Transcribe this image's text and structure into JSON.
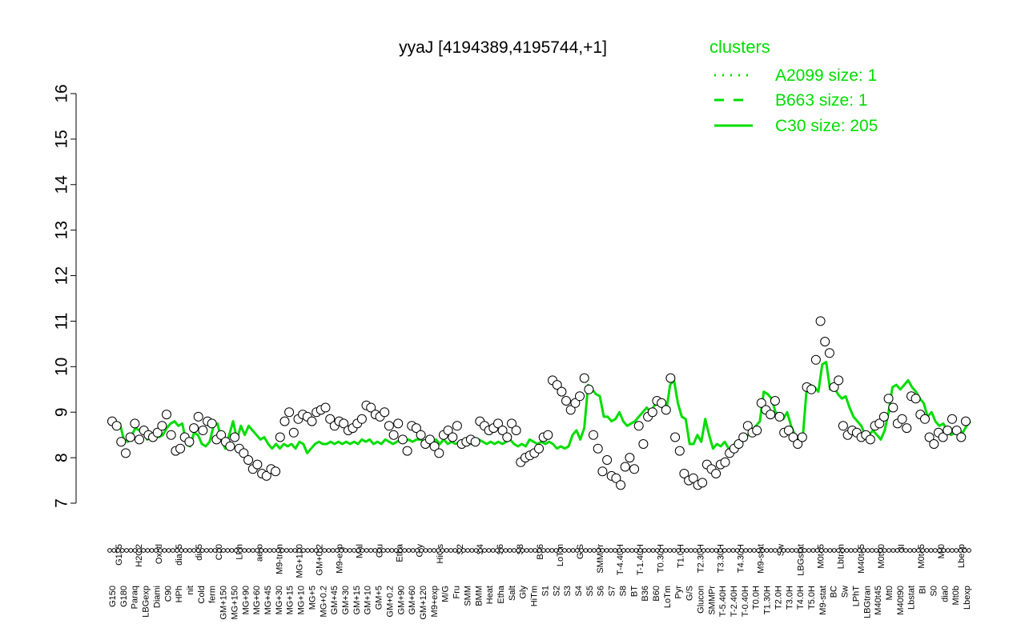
{
  "chart_data": {
    "type": "line",
    "title": "yyaJ [4194389,4195744,+1]",
    "xlabel": "",
    "ylabel": "",
    "ylim": [
      7,
      16
    ],
    "yticks": [
      7,
      8,
      9,
      10,
      11,
      12,
      13,
      14,
      15,
      16
    ],
    "legend": {
      "title": "clusters",
      "placement": "top-right",
      "entries": [
        {
          "label": "A2099 size: 1",
          "style": "dotted"
        },
        {
          "label": "B663 size: 1",
          "style": "dashed"
        },
        {
          "label": "C30 size: 205",
          "style": "solid"
        }
      ]
    },
    "colors": {
      "line": "#00dd00",
      "points": "#000000"
    },
    "x_labels_row1": [
      "G150",
      "G180",
      "Paraq",
      "LBGexp",
      "Diami",
      "C90",
      "HPh",
      "nit",
      "Cold",
      "ferm",
      "GM+150",
      "MG+150",
      "MG+90",
      "MG+60",
      "MG+45",
      "MG+30",
      "MG+15",
      "MG+10",
      "MG+5",
      "MG+0.2",
      "GM+45",
      "GM+30",
      "GM+15",
      "GM+10",
      "GM+5",
      "GM+0.2",
      "GM+90",
      "GM+60",
      "GM+120",
      "M9+exp",
      "M/G",
      "Fru",
      "SMM",
      "BMM",
      "Heat",
      "Etha",
      "Salt",
      "Gly",
      "HiTm",
      "S1",
      "S2",
      "S3",
      "S4",
      "S5",
      "S6",
      "S7",
      "S8",
      "BT",
      "B36",
      "B60",
      "LoTm",
      "Pyr",
      "G/S",
      "Glucon",
      "SMMPr",
      "T-5.40H",
      "T-2.40H",
      "T-0.40H",
      "T0.0H",
      "T1.30H",
      "T2.0H",
      "T3.0H",
      "T4.0H",
      "T5.0H",
      "M9-stat",
      "BC",
      "Sw",
      "LPhT",
      "LBGtran",
      "M40t45",
      "Mt0",
      "M40t90",
      "Lbstat",
      "BI",
      "S0",
      "dia0",
      "Mt0b",
      "Lbexp"
    ],
    "x_labels_row2": [
      "G135",
      "H2O2",
      "Oxctl",
      "dia15",
      "dia5",
      "C30",
      "LPh",
      "aero",
      "M9-tran",
      "MG+120",
      "GM+0.2",
      "M9-exp",
      "Mal",
      "Glu",
      "Etha",
      "Gly",
      "HiOs",
      "S2",
      "S4",
      "S6",
      "S8",
      "B36",
      "LoTm",
      "G/S",
      "SMMPr",
      "T-4.40H",
      "T-1.40H",
      "T0.30H",
      "T1.0H",
      "T2.30H",
      "T3.30H",
      "T4.30H",
      "M9-stat",
      "Sw",
      "LBGstat",
      "M0t45",
      "Lbtran",
      "M40t45",
      "M0t90",
      "BI",
      "M0t45",
      "Mt0",
      "Lbexp"
    ],
    "series": [
      {
        "name": "C30 size: 205",
        "values": [
          8.8,
          8.7,
          8.75,
          8.4,
          8.35,
          8.5,
          8.65,
          8.6,
          8.55,
          8.4,
          8.55,
          8.5,
          8.45,
          8.5,
          8.65,
          8.75,
          8.8,
          8.7,
          8.75,
          8.3,
          8.25,
          8.55,
          8.5,
          8.3,
          8.25,
          8.35,
          8.7,
          8.75,
          8.4,
          8.2,
          8.5,
          8.8,
          8.4,
          8.7,
          8.5,
          8.7,
          8.6,
          8.5,
          8.4,
          8.45,
          8.3,
          8.2,
          8.3,
          8.2,
          8.3,
          8.25,
          8.3,
          8.2,
          8.35,
          8.3,
          8.1,
          8.2,
          8.3,
          8.35,
          8.3,
          8.3,
          8.35,
          8.3,
          8.35,
          8.3,
          8.35,
          8.3,
          8.35,
          8.3,
          8.4,
          8.35,
          8.4,
          8.3,
          8.35,
          8.3,
          8.4,
          8.35,
          8.3,
          8.35,
          8.4,
          8.35,
          8.4,
          8.35,
          8.4,
          8.4,
          8.35,
          8.4,
          8.35,
          8.4,
          8.3,
          8.4,
          8.3,
          8.35,
          8.3,
          8.35,
          8.3,
          8.35,
          8.3,
          8.35,
          8.4,
          8.35,
          8.3,
          8.35,
          8.3,
          8.35,
          8.3,
          8.35,
          8.4,
          8.3,
          8.25,
          8.3,
          8.25,
          8.4,
          8.35,
          8.3,
          8.35,
          8.3,
          8.35,
          8.3,
          8.2,
          8.25,
          8.2,
          8.25,
          8.5,
          8.6,
          8.4,
          8.65,
          9.6,
          9.5,
          9.4,
          9.35,
          8.9,
          8.9,
          8.8,
          8.85,
          9.0,
          8.8,
          8.7,
          8.75,
          8.8,
          8.9,
          9.0,
          9.1,
          9.0,
          9.15,
          9.2,
          9.1,
          9.0,
          9.6,
          9.7,
          9.2,
          8.9,
          8.85,
          8.3,
          8.3,
          8.5,
          8.35,
          8.85,
          8.5,
          8.2,
          8.3,
          8.25,
          8.35,
          8.2,
          8.25,
          8.35,
          8.3,
          8.4,
          8.5,
          8.6,
          8.7,
          8.8,
          9.45,
          9.4,
          9.3,
          9.0,
          8.95,
          8.85,
          9.0,
          8.7,
          8.5,
          8.4,
          8.45,
          9.5,
          9.6,
          9.55,
          9.45,
          10.05,
          10.1,
          9.5,
          9.55,
          9.4,
          9.3,
          9.35,
          9.1,
          8.9,
          8.8,
          8.7,
          8.5,
          8.5,
          8.6,
          8.5,
          8.4,
          8.6,
          9.0,
          9.55,
          9.6,
          9.5,
          9.6,
          9.7,
          9.55,
          9.45,
          9.3,
          9.2,
          8.9,
          9.0,
          8.8,
          8.7,
          8.75,
          8.6,
          8.5,
          8.55,
          8.6,
          8.55,
          8.7,
          8.8
        ]
      }
    ],
    "points": [
      {
        "label": "G150",
        "y": 8.8
      },
      {
        "label": "G150",
        "y": 8.7
      },
      {
        "label": "G135",
        "y": 8.35
      },
      {
        "label": "G135",
        "y": 8.1
      },
      {
        "label": "G180",
        "y": 8.45
      },
      {
        "label": "G180",
        "y": 8.75
      },
      {
        "label": "H2O2",
        "y": 8.4
      },
      {
        "label": "H2O2",
        "y": 8.6
      },
      {
        "label": "Paraq",
        "y": 8.5
      },
      {
        "label": "Oxctl",
        "y": 8.45
      },
      {
        "label": "Oxctl",
        "y": 8.55
      },
      {
        "label": "LBGexp",
        "y": 8.7
      },
      {
        "label": "LBGexp",
        "y": 8.95
      },
      {
        "label": "dia15",
        "y": 8.5
      },
      {
        "label": "dia15",
        "y": 8.15
      },
      {
        "label": "dia15",
        "y": 8.2
      },
      {
        "label": "Diami",
        "y": 8.45
      },
      {
        "label": "Diami",
        "y": 8.35
      },
      {
        "label": "dia5",
        "y": 8.65
      },
      {
        "label": "dia5",
        "y": 8.9
      },
      {
        "label": "C90",
        "y": 8.6
      },
      {
        "label": "C30",
        "y": 8.8
      },
      {
        "label": "C30",
        "y": 8.75
      },
      {
        "label": "LPh",
        "y": 8.4
      },
      {
        "label": "LPh",
        "y": 8.5
      },
      {
        "label": "HPh",
        "y": 8.35
      },
      {
        "label": "HPh",
        "y": 8.25
      },
      {
        "label": "aero",
        "y": 8.45
      },
      {
        "label": "aero",
        "y": 8.2
      },
      {
        "label": "aero",
        "y": 8.1
      },
      {
        "label": "nit",
        "y": 7.95
      },
      {
        "label": "Cold",
        "y": 7.75
      },
      {
        "label": "Cold",
        "y": 7.85
      },
      {
        "label": "ferm",
        "y": 7.65
      },
      {
        "label": "ferm",
        "y": 7.6
      },
      {
        "label": "ferm",
        "y": 7.75
      },
      {
        "label": "ferm",
        "y": 7.7
      },
      {
        "label": "GM+150",
        "y": 8.45
      },
      {
        "label": "M9-tran",
        "y": 8.8
      },
      {
        "label": "M9-tran",
        "y": 9.0
      },
      {
        "label": "MG+150",
        "y": 8.55
      },
      {
        "label": "MG+150",
        "y": 8.85
      },
      {
        "label": "MG+120",
        "y": 8.95
      },
      {
        "label": "MG+90",
        "y": 8.9
      },
      {
        "label": "MG+60",
        "y": 8.8
      },
      {
        "label": "MG+45",
        "y": 9.0
      },
      {
        "label": "MG+30",
        "y": 9.05
      },
      {
        "label": "MG+15",
        "y": 9.1
      },
      {
        "label": "MG+10",
        "y": 8.85
      },
      {
        "label": "MG+5",
        "y": 8.7
      },
      {
        "label": "MG+0.2",
        "y": 8.8
      },
      {
        "label": "GM+0.2",
        "y": 8.75
      },
      {
        "label": "GM+0.2",
        "y": 8.6
      },
      {
        "label": "GM+45",
        "y": 8.65
      },
      {
        "label": "GM+30",
        "y": 8.75
      },
      {
        "label": "GM+15",
        "y": 8.85
      },
      {
        "label": "GM+10",
        "y": 9.15
      },
      {
        "label": "GM+5",
        "y": 9.1
      },
      {
        "label": "GM+0.2",
        "y": 8.95
      },
      {
        "label": "GM+90",
        "y": 8.9
      },
      {
        "label": "GM+60",
        "y": 9.0
      },
      {
        "label": "GM+120",
        "y": 8.7
      },
      {
        "label": "GM+120",
        "y": 8.5
      },
      {
        "label": "GM+120",
        "y": 8.75
      },
      {
        "label": "GM+120",
        "y": 8.4
      },
      {
        "label": "GM+120",
        "y": 8.15
      },
      {
        "label": "GM+120",
        "y": 8.7
      },
      {
        "label": "GM+120",
        "y": 8.65
      },
      {
        "label": "GM+120",
        "y": 8.5
      },
      {
        "label": "GM+120",
        "y": 8.3
      },
      {
        "label": "GM+120",
        "y": 8.4
      },
      {
        "label": "GM+120",
        "y": 8.25
      },
      {
        "label": "GM+120",
        "y": 8.1
      },
      {
        "label": "M9-exp",
        "y": 8.5
      },
      {
        "label": "M9-exp",
        "y": 8.6
      },
      {
        "label": "M9-exp",
        "y": 8.45
      },
      {
        "label": "M9-exp",
        "y": 8.7
      },
      {
        "label": "M/G",
        "y": 8.3
      },
      {
        "label": "M/G",
        "y": 8.35
      },
      {
        "label": "Mal",
        "y": 8.4
      },
      {
        "label": "Mal",
        "y": 8.35
      },
      {
        "label": "Fru",
        "y": 8.8
      },
      {
        "label": "Glu",
        "y": 8.7
      },
      {
        "label": "Glu",
        "y": 8.6
      },
      {
        "label": "SMM",
        "y": 8.65
      },
      {
        "label": "SMM",
        "y": 8.75
      },
      {
        "label": "BMM",
        "y": 8.6
      },
      {
        "label": "BMM",
        "y": 8.45
      },
      {
        "label": "Heat",
        "y": 8.75
      },
      {
        "label": "Heat",
        "y": 8.6
      },
      {
        "label": "Etha",
        "y": 7.9
      },
      {
        "label": "Etha",
        "y": 8.0
      },
      {
        "label": "Salt",
        "y": 8.05
      },
      {
        "label": "Salt",
        "y": 8.1
      },
      {
        "label": "Gly",
        "y": 8.2
      },
      {
        "label": "Gly",
        "y": 8.45
      },
      {
        "label": "Gly",
        "y": 8.5
      },
      {
        "label": "HiTm",
        "y": 9.7
      },
      {
        "label": "HiTm",
        "y": 9.6
      },
      {
        "label": "HiOs",
        "y": 9.45
      },
      {
        "label": "HiOs",
        "y": 9.25
      },
      {
        "label": "S1",
        "y": 9.05
      },
      {
        "label": "S1",
        "y": 9.2
      },
      {
        "label": "S2",
        "y": 9.35
      },
      {
        "label": "S2",
        "y": 9.75
      },
      {
        "label": "S2",
        "y": 9.5
      },
      {
        "label": "S3",
        "y": 8.5
      },
      {
        "label": "S3",
        "y": 8.2
      },
      {
        "label": "S4",
        "y": 7.7
      },
      {
        "label": "S4",
        "y": 7.95
      },
      {
        "label": "S5",
        "y": 7.6
      },
      {
        "label": "S5",
        "y": 7.55
      },
      {
        "label": "S5",
        "y": 7.4
      },
      {
        "label": "S6",
        "y": 7.8
      },
      {
        "label": "S6",
        "y": 8.0
      },
      {
        "label": "S6",
        "y": 7.75
      },
      {
        "label": "S6",
        "y": 8.7
      },
      {
        "label": "S6",
        "y": 8.3
      },
      {
        "label": "S7",
        "y": 8.9
      },
      {
        "label": "S7",
        "y": 9.0
      },
      {
        "label": "S8",
        "y": 9.25
      },
      {
        "label": "S8",
        "y": 9.2
      },
      {
        "label": "S6",
        "y": 9.05
      },
      {
        "label": "S6",
        "y": 9.75
      },
      {
        "label": "BT",
        "y": 8.45
      },
      {
        "label": "BT",
        "y": 8.15
      },
      {
        "label": "B36",
        "y": 7.65
      },
      {
        "label": "B36",
        "y": 7.5
      },
      {
        "label": "B60",
        "y": 7.55
      },
      {
        "label": "LoTm",
        "y": 7.4
      },
      {
        "label": "LoTm",
        "y": 7.45
      },
      {
        "label": "Pyr",
        "y": 7.85
      },
      {
        "label": "Pyr",
        "y": 7.75
      },
      {
        "label": "G/S",
        "y": 7.65
      },
      {
        "label": "G/S",
        "y": 7.85
      },
      {
        "label": "Glucon",
        "y": 7.9
      },
      {
        "label": "Glucon",
        "y": 8.1
      },
      {
        "label": "SMMPr",
        "y": 8.2
      },
      {
        "label": "SMMPr",
        "y": 8.3
      },
      {
        "label": "T-5.40H",
        "y": 8.45
      },
      {
        "label": "T-4.40H",
        "y": 8.7
      },
      {
        "label": "T-2.40H",
        "y": 8.55
      },
      {
        "label": "T-1.40H",
        "y": 8.6
      },
      {
        "label": "T0.0H",
        "y": 9.2
      },
      {
        "label": "T0.30H",
        "y": 9.05
      },
      {
        "label": "T1.0H",
        "y": 8.95
      },
      {
        "label": "T1.30H",
        "y": 9.25
      },
      {
        "label": "T2.0H",
        "y": 8.9
      },
      {
        "label": "T2.30H",
        "y": 8.55
      },
      {
        "label": "T3.0H",
        "y": 8.6
      },
      {
        "label": "T3.30H",
        "y": 8.45
      },
      {
        "label": "T4.0H",
        "y": 8.3
      },
      {
        "label": "T5.0H",
        "y": 8.45
      },
      {
        "label": "M9-stat",
        "y": 9.55
      },
      {
        "label": "M9-stat",
        "y": 9.5
      },
      {
        "label": "BC",
        "y": 10.15
      },
      {
        "label": "BC",
        "y": 11.0
      },
      {
        "label": "BC",
        "y": 10.55
      },
      {
        "label": "BC",
        "y": 10.3
      },
      {
        "label": "Sw",
        "y": 9.55
      },
      {
        "label": "Sw",
        "y": 9.7
      },
      {
        "label": "LPhT",
        "y": 8.7
      },
      {
        "label": "LPhT",
        "y": 8.5
      },
      {
        "label": "LBGstat",
        "y": 8.6
      },
      {
        "label": "LBGstat",
        "y": 8.55
      },
      {
        "label": "LBGtran",
        "y": 8.45
      },
      {
        "label": "LBGtran",
        "y": 8.5
      },
      {
        "label": "M40t45",
        "y": 8.4
      },
      {
        "label": "M0t45",
        "y": 8.7
      },
      {
        "label": "M0t45",
        "y": 8.75
      },
      {
        "label": "Mt0",
        "y": 8.9
      },
      {
        "label": "Lbtran",
        "y": 9.3
      },
      {
        "label": "M40t45",
        "y": 9.1
      },
      {
        "label": "M40t90",
        "y": 8.75
      },
      {
        "label": "M0t90",
        "y": 8.85
      },
      {
        "label": "M0t90",
        "y": 8.65
      },
      {
        "label": "Lbstat",
        "y": 9.35
      },
      {
        "label": "Lbstat",
        "y": 9.3
      },
      {
        "label": "BI",
        "y": 8.95
      },
      {
        "label": "BI",
        "y": 8.85
      },
      {
        "label": "S0",
        "y": 8.45
      },
      {
        "label": "S0",
        "y": 8.3
      },
      {
        "label": "dia0",
        "y": 8.55
      },
      {
        "label": "dia0",
        "y": 8.45
      },
      {
        "label": "M0t45",
        "y": 8.6
      },
      {
        "label": "Mt0",
        "y": 8.85
      },
      {
        "label": "Lbexp",
        "y": 8.6
      },
      {
        "label": "Lbexp",
        "y": 8.45
      },
      {
        "label": "Lbexp",
        "y": 8.8
      }
    ]
  }
}
